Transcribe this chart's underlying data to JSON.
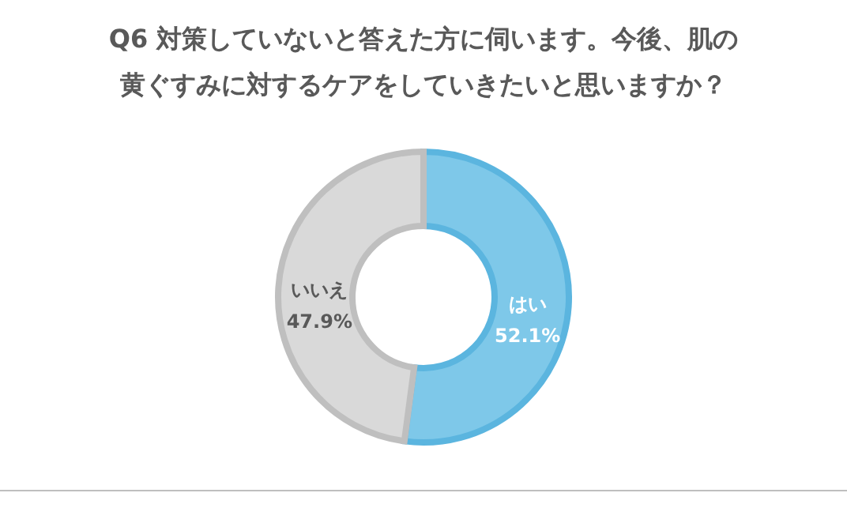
{
  "chart_data": {
    "type": "donut",
    "title": "Q6 対策していないと答えた方に伺います。今後、肌の黄ぐすみに対するケアをしていきたいと思いますか？",
    "categories": [
      "はい",
      "いいえ"
    ],
    "values": [
      52.1,
      47.9
    ],
    "colors": [
      "#7ec8e9",
      "#d9d9d9"
    ],
    "value_labels": [
      "52.1%",
      "47.9%"
    ]
  }
}
